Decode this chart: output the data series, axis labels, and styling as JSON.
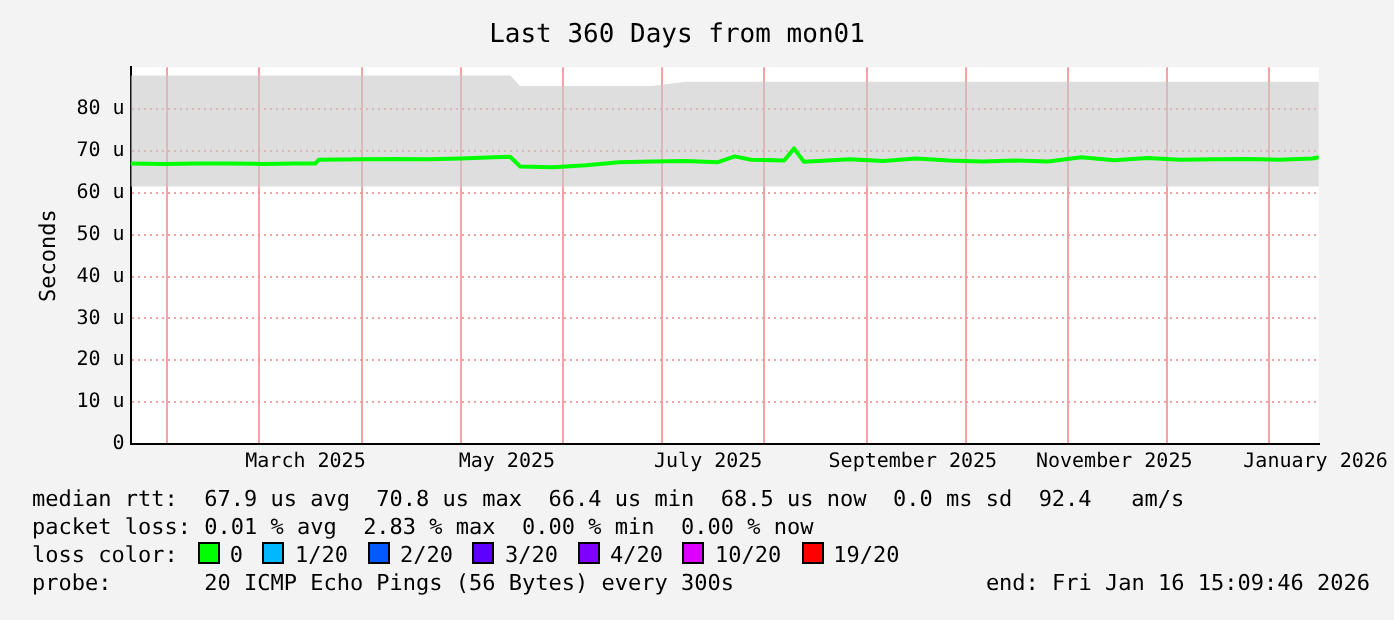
{
  "chart_data": {
    "type": "line",
    "title": "Last 360 Days from mon01",
    "ylabel": "Seconds",
    "x": [
      "2025-01-21",
      "2025-01-31",
      "2025-02-10",
      "2025-02-20",
      "2025-03-02",
      "2025-03-12",
      "2025-03-18",
      "2025-03-19",
      "2025-04-01",
      "2025-04-11",
      "2025-04-21",
      "2025-05-01",
      "2025-05-11",
      "2025-05-16",
      "2025-05-19",
      "2025-05-29",
      "2025-06-08",
      "2025-06-18",
      "2025-06-28",
      "2025-07-08",
      "2025-07-18",
      "2025-07-23",
      "2025-07-28",
      "2025-08-07",
      "2025-08-10",
      "2025-08-13",
      "2025-08-27",
      "2025-09-06",
      "2025-09-16",
      "2025-09-26",
      "2025-10-06",
      "2025-10-16",
      "2025-10-26",
      "2025-11-05",
      "2025-11-15",
      "2025-11-25",
      "2025-12-05",
      "2025-12-15",
      "2025-12-25",
      "2026-01-04",
      "2026-01-14",
      "2026-01-16"
    ],
    "series": [
      {
        "color": "#00ff00",
        "values": [
          67.0,
          66.9,
          67.0,
          67.0,
          66.9,
          67.0,
          67.0,
          67.9,
          68.0,
          68.1,
          68.0,
          68.2,
          68.5,
          68.6,
          66.3,
          66.1,
          66.6,
          67.3,
          67.5,
          67.6,
          67.3,
          68.7,
          67.9,
          67.7,
          70.6,
          67.4,
          68.0,
          67.6,
          68.2,
          67.7,
          67.5,
          67.7,
          67.5,
          68.5,
          67.8,
          68.3,
          67.9,
          68.0,
          68.1,
          67.9,
          68.2,
          68.5
        ],
        "lower": [
          61.5,
          61.5,
          61.5,
          61.5,
          61.5,
          61.5,
          61.5,
          61.5,
          61.5,
          61.5,
          61.5,
          61.5,
          61.5,
          61.5,
          61.5,
          61.5,
          61.5,
          61.5,
          61.5,
          61.5,
          61.5,
          61.5,
          61.5,
          61.5,
          61.5,
          61.5,
          61.5,
          61.5,
          61.5,
          61.5,
          61.5,
          61.5,
          61.5,
          61.5,
          61.5,
          61.5,
          61.5,
          61.5,
          61.5,
          61.5,
          61.5,
          61.5
        ],
        "upper": [
          88,
          88,
          88,
          88,
          88,
          88,
          88,
          88,
          88,
          88,
          88,
          88,
          88,
          88,
          85.5,
          85.5,
          85.5,
          85.5,
          85.5,
          86.5,
          86.5,
          86.5,
          86.5,
          86.5,
          86.5,
          86.5,
          86.5,
          86.5,
          86.5,
          86.5,
          86.5,
          86.5,
          86.5,
          86.5,
          86.5,
          86.5,
          86.5,
          86.5,
          86.5,
          86.5,
          86.5,
          86.5
        ]
      }
    ],
    "xlim": [
      "2025-01-21",
      "2026-01-16"
    ],
    "xticks": [
      {
        "value": "2025-02-01",
        "label": null
      },
      {
        "value": "2025-03-01",
        "label": null
      },
      {
        "value": "2025-03-15",
        "label": "March 2025"
      },
      {
        "value": "2025-04-01",
        "label": null
      },
      {
        "value": "2025-05-01",
        "label": null
      },
      {
        "value": "2025-05-15",
        "label": "May 2025"
      },
      {
        "value": "2025-06-01",
        "label": null
      },
      {
        "value": "2025-07-01",
        "label": null
      },
      {
        "value": "2025-07-15",
        "label": "July 2025"
      },
      {
        "value": "2025-08-01",
        "label": null
      },
      {
        "value": "2025-09-01",
        "label": null
      },
      {
        "value": "2025-09-15",
        "label": "September 2025"
      },
      {
        "value": "2025-10-01",
        "label": null
      },
      {
        "value": "2025-11-01",
        "label": null
      },
      {
        "value": "2025-11-15",
        "label": "November 2025"
      },
      {
        "value": "2025-12-01",
        "label": null
      },
      {
        "value": "2026-01-01",
        "label": null
      },
      {
        "value": "2026-01-15",
        "label": "January 2026"
      }
    ],
    "ylim": [
      0,
      90
    ],
    "yticks": [
      0,
      {
        "value": 10,
        "label": "10 u"
      },
      {
        "value": 20,
        "label": "20 u"
      },
      {
        "value": 30,
        "label": "30 u"
      },
      {
        "value": 40,
        "label": "40 u"
      },
      {
        "value": 50,
        "label": "50 u"
      },
      {
        "value": 60,
        "label": "60 u"
      },
      {
        "value": 70,
        "label": "70 u"
      },
      {
        "value": 80,
        "label": "80 u"
      }
    ],
    "grid": true,
    "legend": false,
    "marker": "none",
    "line_style": "solid",
    "annotations": [
      "median rtt:  67.9 us avg  70.8 us max  66.4 us min  68.5 us now  0.0 ms sd  92.4   am/s",
      "packet loss: 0.01 % avg  2.83 % max  0.00 % min  0.00 % now",
      "loss color:",
      "0",
      "1/20",
      "2/20",
      "3/20",
      "4/20",
      "10/20",
      "19/20",
      "probe:       20 ICMP Echo Pings (56 Bytes) every 300s",
      "end: Fri Jan 16 15:09:46 2026"
    ]
  }
}
